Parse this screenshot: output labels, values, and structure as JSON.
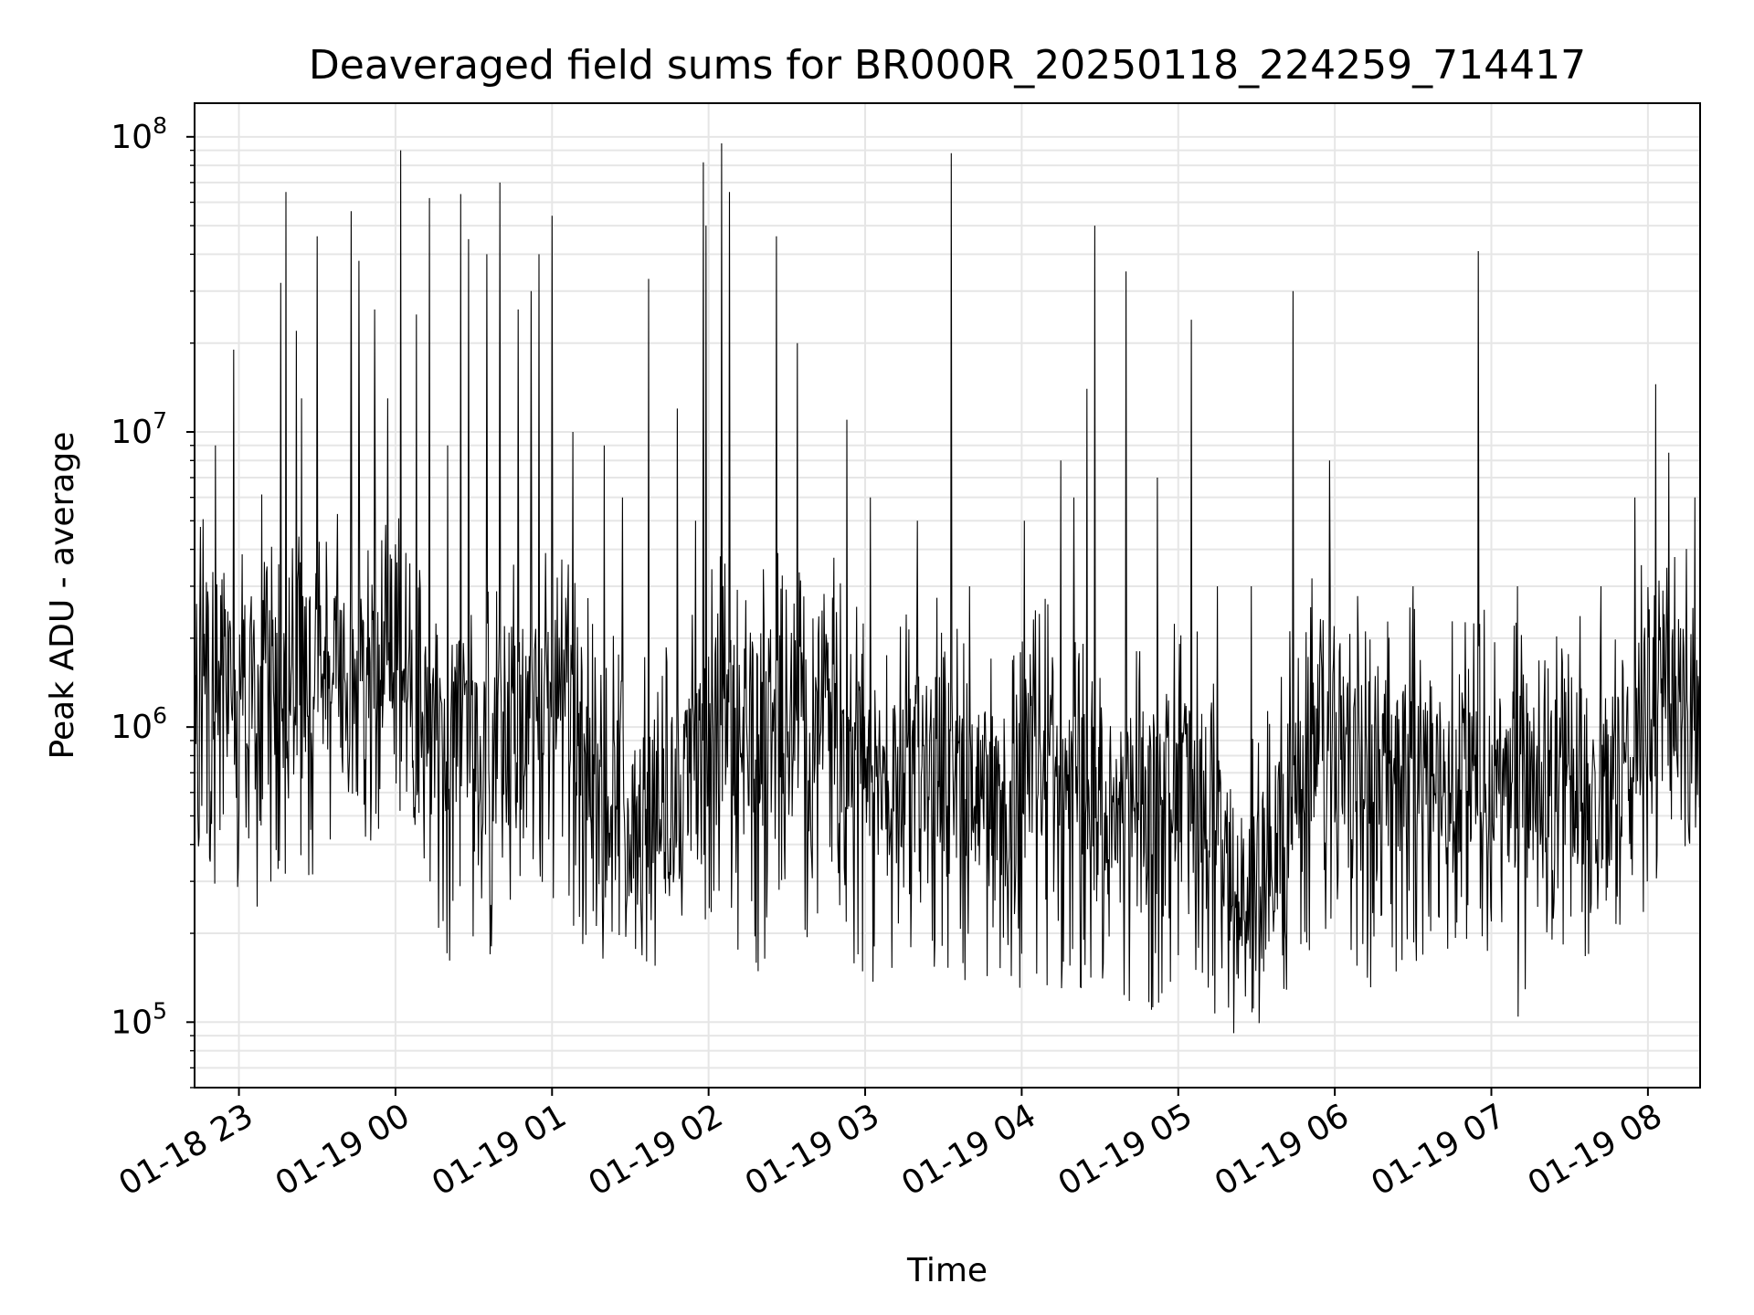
{
  "chart_data": {
    "type": "line",
    "title": "Deaveraged field sums for BR000R_20250118_224259_714417",
    "xlabel": "Time",
    "ylabel": "Peak ADU - average",
    "yscale": "log",
    "ylim": [
      60000,
      130000000
    ],
    "xlim": [
      "2025-01-18 22:43",
      "2025-01-19 08:20"
    ],
    "grid": true,
    "x_ticks": [
      "01-18 23",
      "01-19 00",
      "01-19 01",
      "01-19 02",
      "01-19 03",
      "01-19 04",
      "01-19 05",
      "01-19 06",
      "01-19 07",
      "01-19 08"
    ],
    "y_ticks": [
      {
        "base": "10",
        "exp": "5",
        "value": 100000
      },
      {
        "base": "10",
        "exp": "6",
        "value": 1000000
      },
      {
        "base": "10",
        "exp": "7",
        "value": 10000000
      },
      {
        "base": "10",
        "exp": "8",
        "value": 100000000
      }
    ],
    "series": [
      {
        "color": "#000000",
        "x": [
          "22:43",
          "22:50",
          "22:55",
          "23:00",
          "23:05",
          "23:10",
          "23:15",
          "23:20",
          "23:25",
          "23:30",
          "23:35",
          "23:40",
          "23:45",
          "23:50",
          "23:55",
          "00:00",
          "00:05",
          "00:10",
          "00:15",
          "00:20",
          "00:25",
          "00:30",
          "00:35",
          "00:40",
          "00:45",
          "00:50",
          "00:55",
          "01:00",
          "01:05",
          "01:10",
          "01:15",
          "01:20",
          "01:25",
          "01:30",
          "01:35",
          "01:40",
          "01:45",
          "01:50",
          "01:55",
          "02:00",
          "02:05",
          "02:10",
          "02:15",
          "02:20",
          "02:25",
          "02:30",
          "02:35",
          "02:40",
          "02:45",
          "02:50",
          "02:55",
          "03:00",
          "03:05",
          "03:10",
          "03:15",
          "03:20",
          "03:25",
          "03:30",
          "03:35",
          "03:40",
          "03:45",
          "03:50",
          "03:55",
          "04:00",
          "04:05",
          "04:10",
          "04:15",
          "04:20",
          "04:25",
          "04:30",
          "04:35",
          "04:40",
          "04:45",
          "04:50",
          "04:55",
          "05:00",
          "05:05",
          "05:10",
          "05:15",
          "05:20",
          "05:25",
          "05:30",
          "05:35",
          "05:40",
          "05:45",
          "05:50",
          "05:55",
          "06:00",
          "06:05",
          "06:10",
          "06:15",
          "06:20",
          "06:25",
          "06:30",
          "06:35",
          "06:40",
          "06:45",
          "06:50",
          "06:55",
          "07:00",
          "07:05",
          "07:10",
          "07:15",
          "07:20",
          "07:25",
          "07:30",
          "07:35",
          "07:40",
          "07:45",
          "07:50",
          "07:55",
          "08:00",
          "08:05",
          "08:10",
          "08:15",
          "08:20"
        ],
        "y": [
          1500000,
          1800000,
          1300000,
          1600000,
          1400000,
          2000000,
          1200000,
          1700000,
          1500000,
          1900000,
          1400000,
          1600000,
          1800000,
          1300000,
          1700000,
          1600000,
          1400000,
          1100000,
          1300000,
          900000,
          1200000,
          1000000,
          800000,
          1100000,
          1200000,
          900000,
          1300000,
          1000000,
          1400000,
          1200000,
          700000,
          500000,
          600000,
          450000,
          550000,
          500000,
          600000,
          700000,
          800000,
          900000,
          1100000,
          1000000,
          900000,
          1100000,
          1200000,
          1000000,
          1100000,
          900000,
          1200000,
          1000000,
          900000,
          800000,
          700000,
          600000,
          700000,
          800000,
          900000,
          700000,
          600000,
          500000,
          600000,
          550000,
          500000,
          600000,
          700000,
          800000,
          650000,
          600000,
          550000,
          500000,
          600000,
          700000,
          550000,
          600000,
          650000,
          700000,
          600000,
          550000,
          400000,
          300000,
          250000,
          300000,
          350000,
          500000,
          700000,
          900000,
          800000,
          850000,
          800000,
          750000,
          700000,
          650000,
          700000,
          750000,
          700000,
          650000,
          700000,
          800000,
          750000,
          700000,
          650000,
          700000,
          750000,
          650000,
          600000,
          700000,
          650000,
          600000,
          700000,
          750000,
          900000,
          1200000,
          1400000,
          1300000,
          1100000,
          1000000
        ],
        "lows": [
          280000,
          300000,
          250000,
          220000,
          210000,
          270000,
          240000,
          280000,
          300000,
          260000,
          400000,
          500000,
          600000,
          350000,
          300000,
          550000,
          380000,
          270000,
          200000,
          160000,
          170000,
          190000,
          150000,
          170000,
          260000,
          210000,
          280000,
          230000,
          250000,
          190000,
          170000,
          160000,
          180000,
          170000,
          160000,
          150000,
          200000,
          210000,
          190000,
          230000,
          240000,
          180000,
          160000,
          140000,
          200000,
          190000,
          200000,
          180000,
          160000,
          170000,
          150000,
          140000,
          130000,
          150000,
          170000,
          160000,
          140000,
          150000,
          130000,
          120000,
          150000,
          130000,
          130000,
          110000,
          120000,
          130000,
          120000,
          110000,
          100000,
          130000,
          140000,
          120000,
          110000,
          100000,
          130000,
          140000,
          120000,
          110000,
          100000,
          90000,
          95000,
          85000,
          110000,
          120000,
          130000,
          160000,
          150000,
          180000,
          170000,
          140000,
          120000,
          90000,
          110000,
          140000,
          180000,
          170000,
          140000,
          130000,
          150000,
          160000,
          120000,
          100000,
          140000,
          150000,
          160000,
          140000,
          170000,
          150000,
          200000,
          210000,
          230000,
          220000,
          300000,
          350000,
          370000,
          400000
        ],
        "spikes": [
          {
            "x": "22:51",
            "y": 9000000
          },
          {
            "x": "22:58",
            "y": 19000000
          },
          {
            "x": "23:16",
            "y": 32000000
          },
          {
            "x": "23:18",
            "y": 65000000
          },
          {
            "x": "23:22",
            "y": 22000000
          },
          {
            "x": "23:24",
            "y": 13000000
          },
          {
            "x": "23:30",
            "y": 46000000
          },
          {
            "x": "23:43",
            "y": 56000000
          },
          {
            "x": "23:46",
            "y": 38000000
          },
          {
            "x": "23:52",
            "y": 26000000
          },
          {
            "x": "23:57",
            "y": 13000000
          },
          {
            "x": "00:02",
            "y": 90000000
          },
          {
            "x": "00:08",
            "y": 25000000
          },
          {
            "x": "00:13",
            "y": 62000000
          },
          {
            "x": "00:20",
            "y": 9000000
          },
          {
            "x": "00:25",
            "y": 64000000
          },
          {
            "x": "00:28",
            "y": 45000000
          },
          {
            "x": "00:35",
            "y": 40000000
          },
          {
            "x": "00:40",
            "y": 70000000
          },
          {
            "x": "00:47",
            "y": 26000000
          },
          {
            "x": "00:52",
            "y": 30000000
          },
          {
            "x": "00:55",
            "y": 40000000
          },
          {
            "x": "01:00",
            "y": 54000000
          },
          {
            "x": "01:08",
            "y": 10000000
          },
          {
            "x": "01:20",
            "y": 9000000
          },
          {
            "x": "01:27",
            "y": 6000000
          },
          {
            "x": "01:37",
            "y": 33000000
          },
          {
            "x": "01:48",
            "y": 12000000
          },
          {
            "x": "01:55",
            "y": 5000000
          },
          {
            "x": "01:58",
            "y": 82000000
          },
          {
            "x": "01:59",
            "y": 50000000
          },
          {
            "x": "02:05",
            "y": 95000000
          },
          {
            "x": "02:08",
            "y": 65000000
          },
          {
            "x": "02:26",
            "y": 46000000
          },
          {
            "x": "02:34",
            "y": 20000000
          },
          {
            "x": "02:53",
            "y": 11000000
          },
          {
            "x": "03:02",
            "y": 6000000
          },
          {
            "x": "03:20",
            "y": 5000000
          },
          {
            "x": "03:33",
            "y": 88000000
          },
          {
            "x": "03:40",
            "y": 3000000
          },
          {
            "x": "04:01",
            "y": 5000000
          },
          {
            "x": "04:15",
            "y": 8000000
          },
          {
            "x": "04:20",
            "y": 6000000
          },
          {
            "x": "04:25",
            "y": 14000000
          },
          {
            "x": "04:28",
            "y": 50000000
          },
          {
            "x": "04:40",
            "y": 35000000
          },
          {
            "x": "04:52",
            "y": 7000000
          },
          {
            "x": "05:05",
            "y": 24000000
          },
          {
            "x": "05:15",
            "y": 3000000
          },
          {
            "x": "05:28",
            "y": 3000000
          },
          {
            "x": "05:44",
            "y": 30000000
          },
          {
            "x": "05:58",
            "y": 8000000
          },
          {
            "x": "06:30",
            "y": 3000000
          },
          {
            "x": "06:55",
            "y": 41000000
          },
          {
            "x": "07:10",
            "y": 3000000
          },
          {
            "x": "07:42",
            "y": 3000000
          },
          {
            "x": "07:55",
            "y": 6000000
          },
          {
            "x": "08:03",
            "y": 14500000
          },
          {
            "x": "08:08",
            "y": 8500000
          },
          {
            "x": "08:18",
            "y": 6000000
          }
        ]
      }
    ]
  }
}
